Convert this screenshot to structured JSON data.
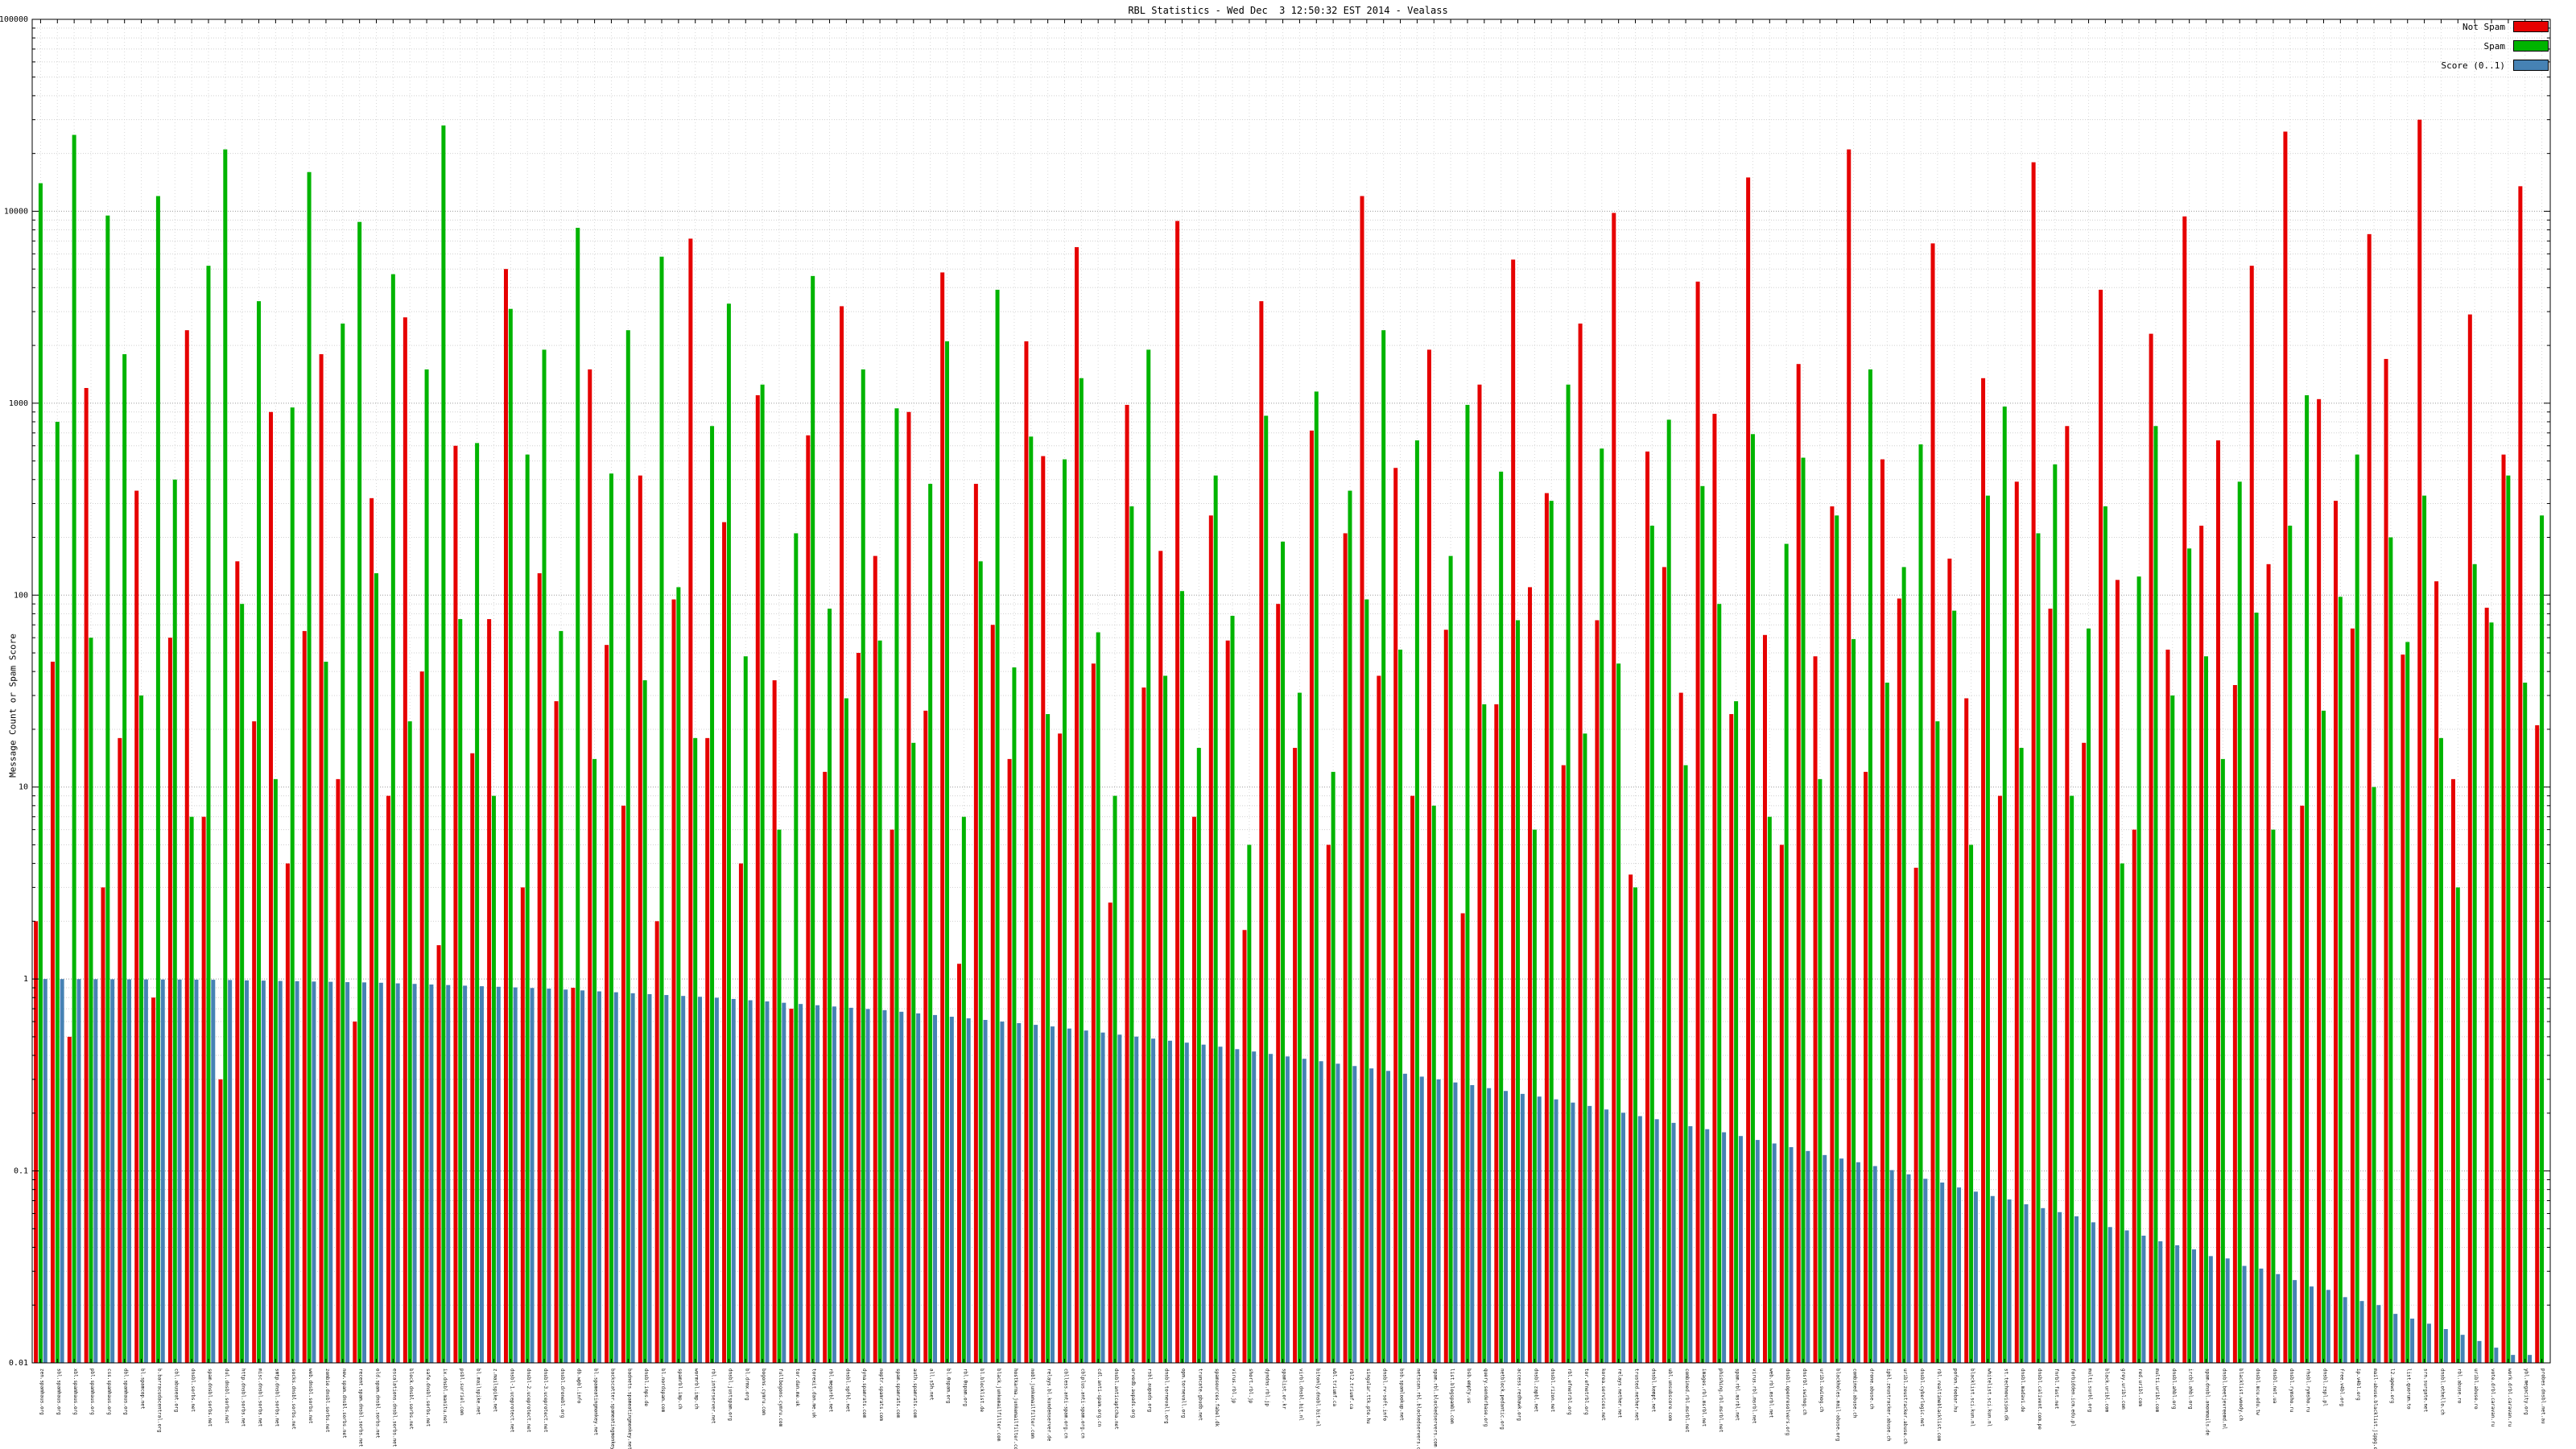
{
  "title": "RBL Statistics - Wed Dec  3 12:50:32 EST 2014 - Vealass",
  "ylabel": "Message Count or Spam Score",
  "legend": [
    {
      "label": "Not Spam",
      "color": "#e60000"
    },
    {
      "label": "Spam",
      "color": "#00b400"
    },
    {
      "label": "Score (0..1)",
      "color": "#4682b4"
    }
  ],
  "yticks": [
    "0.01",
    "0.1",
    "1",
    "10",
    "100",
    "1000",
    "10000",
    "100000"
  ],
  "chart_data": {
    "type": "bar",
    "scale": "log",
    "ylim": [
      0.01,
      100000
    ],
    "grid": true,
    "legend_position": "top-right",
    "title": "RBL Statistics - Wed Dec  3 12:50:32 EST 2014 - Vealass",
    "xlabel": "",
    "ylabel": "Message Count or Spam Score",
    "categories": [
      "zen.spamhaus.org",
      "sbl.spamhaus.org",
      "xbl.spamhaus.org",
      "pbl.spamhaus.org",
      "css.spamhaus.org",
      "dbl.spamhaus.org",
      "bl.spamcop.net",
      "b.barracudacentral.org",
      "cbl.abuseat.org",
      "dnsbl.sorbs.net",
      "spam.dnsbl.sorbs.net",
      "dul.dnsbl.sorbs.net",
      "http.dnsbl.sorbs.net",
      "misc.dnsbl.sorbs.net",
      "smtp.dnsbl.sorbs.net",
      "socks.dnsbl.sorbs.net",
      "web.dnsbl.sorbs.net",
      "zombie.dnsbl.sorbs.net",
      "new.spam.dnsbl.sorbs.net",
      "recent.spam.dnsbl.sorbs.net",
      "old.spam.dnsbl.sorbs.net",
      "escalations.dnsbl.sorbs.net",
      "block.dnsbl.sorbs.net",
      "safe.dnsbl.sorbs.net",
      "ix.dnsbl.manitu.net",
      "psbl.surriel.com",
      "bl.mailspike.net",
      "z.mailspike.net",
      "dnsbl-1.uceprotect.net",
      "dnsbl-2.uceprotect.net",
      "dnsbl-3.uceprotect.net",
      "dnsbl.dronebl.org",
      "db.wpbl.info",
      "bl.spameatingmonkey.net",
      "backscatter.spameatingmonkey.net",
      "badnets.spameatingmonkey.net",
      "dnsbl.inps.de",
      "bl.nordspam.com",
      "spamrbl.imp.ch",
      "wormrbl.imp.ch",
      "rbl.interserver.net",
      "dnsbl.justspam.org",
      "bl.drmx.org",
      "bogons.cymru.com",
      "fullbogons.cymru.com",
      "tor.dan.me.uk",
      "torexit.dan.me.uk",
      "rbl.megarbl.net",
      "dnsbl.spfbl.net",
      "dyna.spamrats.com",
      "noptr.spamrats.com",
      "spam.spamrats.com",
      "auth.spamrats.com",
      "all.s5h.net",
      "bl.0spam.org",
      "rbl.0spam.org",
      "bl.blocklist.de",
      "black.junkemailfilter.com",
      "hostkarma.junkemailfilter.com",
      "nobl.junkemailfilter.com",
      "relays.bl.kundenserver.de",
      "cblless.anti-spam.org.cn",
      "cblplus.anti-spam.org.cn",
      "cdl.anti-spam.org.cn",
      "dnsbl.anticaptcha.net",
      "orvedb.aupads.org",
      "rsbl.aupads.org",
      "dnsbl.tornevall.org",
      "opm.tornevall.org",
      "truncate.gbudb.net",
      "spamsources.fabel.dk",
      "virus.rbl.jp",
      "short.rbl.jp",
      "dyndns.rbl.jp",
      "spamlist.or.kr",
      "virbl.dnsbl.bit.nl",
      "bitonly.dnsbl.bit.nl",
      "wbl.triumf.ca",
      "rbl2.triumf.ca",
      "singular.ttk.pte.hu",
      "dnsbl.rv-soft.info",
      "bsb.spamlookup.net",
      "netscan.rbl.blockedservers.com",
      "spam.rbl.blockedservers.com",
      "list.blogspambl.com",
      "bsb.empty.us",
      "query.senderbase.org",
      "netblock.pedantic.org",
      "access.redhawk.org",
      "dnsbl.zapbl.net",
      "dnsbl.rizon.net",
      "rbl.efnetrbl.org",
      "tor.efnetrbl.org",
      "korea.services.net",
      "relays.nether.net",
      "trusted.nether.net",
      "dnsbl.kempt.net",
      "ubl.unsubscore.com",
      "combined.rbl.msrbl.net",
      "images.rbl.msrbl.net",
      "phishing.rbl.msrbl.net",
      "spam.rbl.msrbl.net",
      "virus.rbl.msrbl.net",
      "web.rbl.msrbl.net",
      "dnsbl.openresolvers.org",
      "dnsrbl.swinog.ch",
      "uribl.swinog.ch",
      "blackholes.mail-abuse.org",
      "combined.abuse.ch",
      "drone.abuse.ch",
      "ipbl.zeustracker.abuse.ch",
      "uribl.zeustracker.abuse.ch",
      "dnsbl.cyberlogic.net",
      "rbl.realtimeblacklist.com",
      "pofon.foobar.hu",
      "blacklist.sci.kun.nl",
      "whitelist.sci.kun.nl",
      "st.technovision.dk",
      "dnsbl.madavi.de",
      "dnsbl.calivent.com.pe",
      "fnrbl.fast.net",
      "forbidden.icm.edu.pl",
      "multi.surbl.org",
      "black.uribl.com",
      "grey.uribl.com",
      "red.uribl.com",
      "multi.uribl.com",
      "dnsbl.ahbl.org",
      "ircbl.ahbl.org",
      "spam.dnsbl.anonmails.de",
      "dnsbl.beetjevreemd.nl",
      "blacklist.woody.ch",
      "dnsbl.mcu.edu.tw",
      "dnsbl.net.ua",
      "dnsbl.rymsho.ru",
      "rhsbl.rymsho.ru",
      "dnsbl.zspl.pl",
      "free.v4bl.org",
      "ip.v4bl.org",
      "mail-abuse.blacklist.jippg.org",
      "l2.apews.org",
      "list.quorum.to",
      "srn.surgate.net",
      "dnsbl.othello.ch",
      "rbl.abuse.ro",
      "uribl.abuse.ro",
      "vote.drbl.caravan.ru",
      "work.drbl.caravan.ru",
      "ybl.megacity.org",
      "probes.dnsbl.net.au"
    ],
    "series": [
      {
        "name": "Not Spam",
        "color": "#e60000",
        "values": [
          2,
          45,
          0.5,
          1200,
          3,
          18,
          350,
          0.8,
          60,
          2400,
          7,
          0.3,
          150,
          22,
          900,
          4,
          65,
          1800,
          11,
          0.6,
          320,
          9,
          2800,
          40,
          1.5,
          600,
          15,
          75,
          5000,
          3,
          130,
          28,
          0.9,
          1500,
          55,
          8,
          420,
          2,
          95,
          7200,
          18,
          240,
          4,
          1100,
          36,
          0.7,
          680,
          12,
          3200,
          50,
          160,
          6,
          900,
          25,
          4800,
          1.2,
          380,
          70,
          14,
          2100,
          530,
          19,
          6500,
          44,
          2.5,
          980,
          33,
          170,
          8900,
          7,
          260,
          58,
          1.8,
          3400,
          90,
          16,
          720,
          5,
          210,
          12000,
          38,
          460,
          9,
          1900,
          66,
          2.2,
          1250,
          27,
          5600,
          110,
          340,
          13,
          2600,
          74,
          9800,
          3.5,
          560,
          140,
          31,
          4300,
          880,
          24,
          15000,
          62,
          5,
          1600,
          48,
          290,
          21000,
          12,
          510,
          96,
          3.8,
          6800,
          155,
          29,
          1350,
          9,
          390,
          18000,
          85,
          760,
          17,
          3900,
          120,
          6,
          2300,
          52,
          9400,
          230,
          640,
          34,
          5200,
          145,
          26000,
          8,
          1050,
          310,
          67,
          7600,
          1700,
          49,
          30000,
          118,
          11,
          2900,
          86,
          540,
          13500,
          21
        ]
      },
      {
        "name": "Spam",
        "color": "#00b400",
        "values": [
          14000,
          800,
          25000,
          60,
          9500,
          1800,
          30,
          12000,
          400,
          7,
          5200,
          21000,
          90,
          3400,
          11,
          950,
          16000,
          45,
          2600,
          8800,
          130,
          4700,
          22,
          1500,
          28000,
          75,
          620,
          9,
          3100,
          540,
          1900,
          65,
          8200,
          14,
          430,
          2400,
          36,
          5800,
          110,
          18,
          760,
          3300,
          48,
          1250,
          6,
          210,
          4600,
          85,
          29,
          1500,
          58,
          940,
          17,
          380,
          2100,
          7,
          150,
          3900,
          42,
          670,
          24,
          510,
          1350,
          64,
          9,
          290,
          1900,
          38,
          105,
          16,
          420,
          78,
          5,
          860,
          190,
          31,
          1150,
          12,
          350,
          95,
          2400,
          52,
          640,
          8,
          160,
          980,
          27,
          440,
          74,
          6,
          310,
          1250,
          19,
          580,
          44,
          3,
          230,
          820,
          13,
          370,
          90,
          28,
          690,
          7,
          185,
          520,
          11,
          260,
          59,
          1500,
          35,
          140,
          610,
          22,
          83,
          5,
          330,
          960,
          16,
          210,
          480,
          9,
          67,
          290,
          4,
          125,
          760,
          30,
          175,
          48,
          14,
          390,
          81,
          6,
          230,
          1100,
          25,
          98,
          540,
          10,
          200,
          57,
          330,
          18,
          3,
          145,
          72,
          420,
          35,
          260
        ]
      },
      {
        "name": "Score (0..1)",
        "color": "#4682b4",
        "values": [
          1.0,
          0.999,
          0.999,
          0.998,
          0.997,
          0.996,
          0.995,
          0.994,
          0.993,
          0.992,
          0.991,
          0.988,
          0.984,
          0.981,
          0.977,
          0.974,
          0.97,
          0.967,
          0.963,
          0.96,
          0.956,
          0.949,
          0.943,
          0.936,
          0.93,
          0.923,
          0.917,
          0.911,
          0.904,
          0.898,
          0.891,
          0.881,
          0.872,
          0.862,
          0.853,
          0.843,
          0.834,
          0.825,
          0.816,
          0.808,
          0.799,
          0.787,
          0.775,
          0.764,
          0.752,
          0.741,
          0.73,
          0.719,
          0.708,
          0.698,
          0.688,
          0.675,
          0.662,
          0.649,
          0.636,
          0.624,
          0.612,
          0.6,
          0.589,
          0.577,
          0.566,
          0.552,
          0.539,
          0.526,
          0.513,
          0.501,
          0.489,
          0.477,
          0.466,
          0.455,
          0.444,
          0.431,
          0.419,
          0.407,
          0.395,
          0.384,
          0.373,
          0.362,
          0.352,
          0.342,
          0.332,
          0.321,
          0.31,
          0.3,
          0.289,
          0.28,
          0.27,
          0.261,
          0.252,
          0.244,
          0.236,
          0.227,
          0.218,
          0.209,
          0.201,
          0.193,
          0.186,
          0.178,
          0.171,
          0.165,
          0.159,
          0.152,
          0.145,
          0.139,
          0.133,
          0.127,
          0.121,
          0.116,
          0.111,
          0.106,
          0.101,
          0.096,
          0.091,
          0.087,
          0.082,
          0.078,
          0.074,
          0.071,
          0.067,
          0.064,
          0.061,
          0.058,
          0.054,
          0.051,
          0.049,
          0.046,
          0.043,
          0.041,
          0.039,
          0.036,
          0.035,
          0.032,
          0.031,
          0.029,
          0.027,
          0.025,
          0.024,
          0.022,
          0.021,
          0.02,
          0.018,
          0.017,
          0.016,
          0.015,
          0.014,
          0.013,
          0.012,
          0.011,
          0.011,
          0.01
        ]
      }
    ]
  }
}
